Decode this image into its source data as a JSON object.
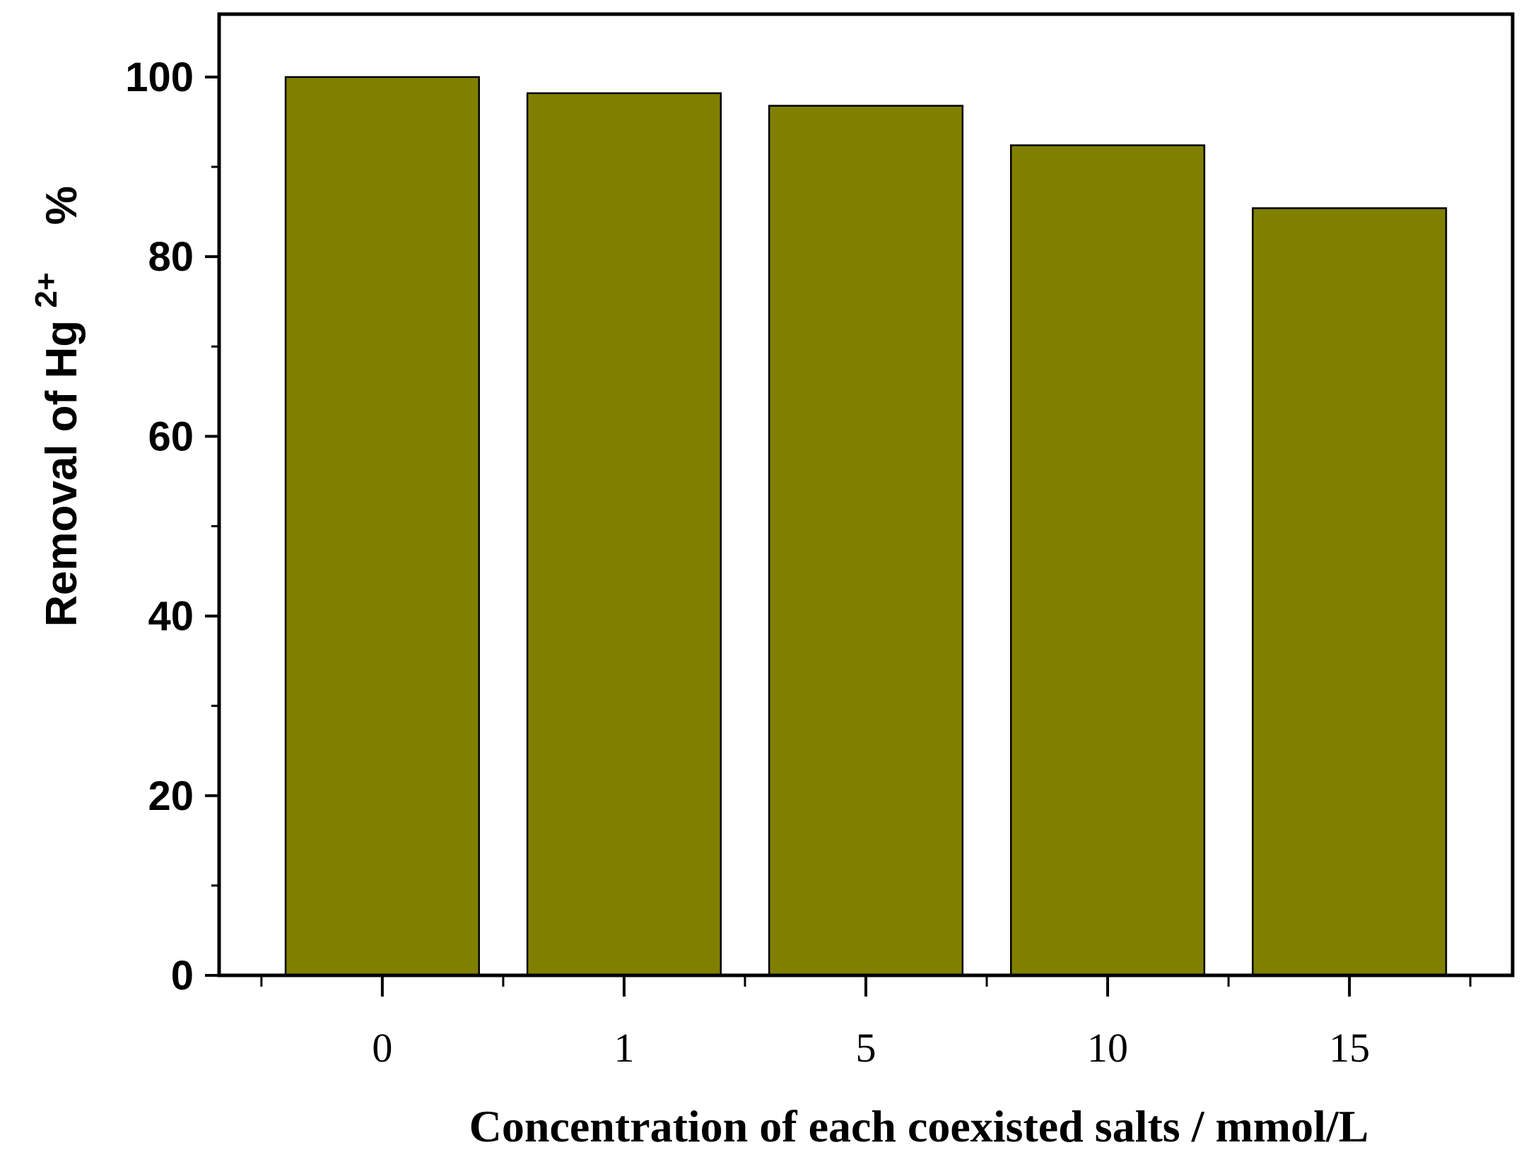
{
  "chart_data": {
    "type": "bar",
    "categories": [
      "0",
      "1",
      "5",
      "10",
      "15"
    ],
    "values": [
      100,
      98.2,
      96.8,
      92.4,
      85.4
    ],
    "ylim": [
      0,
      107
    ],
    "yticks": [
      "0",
      "20",
      "40",
      "60",
      "80",
      "100"
    ],
    "xlabel": "Concentration of each coexisted salts / mmol/L",
    "ylabel_main": "Removal of Hg",
    "ylabel_sup": "2+",
    "ylabel_unit": "%",
    "bar_color": "#808000",
    "grid": false,
    "legend": "none"
  }
}
